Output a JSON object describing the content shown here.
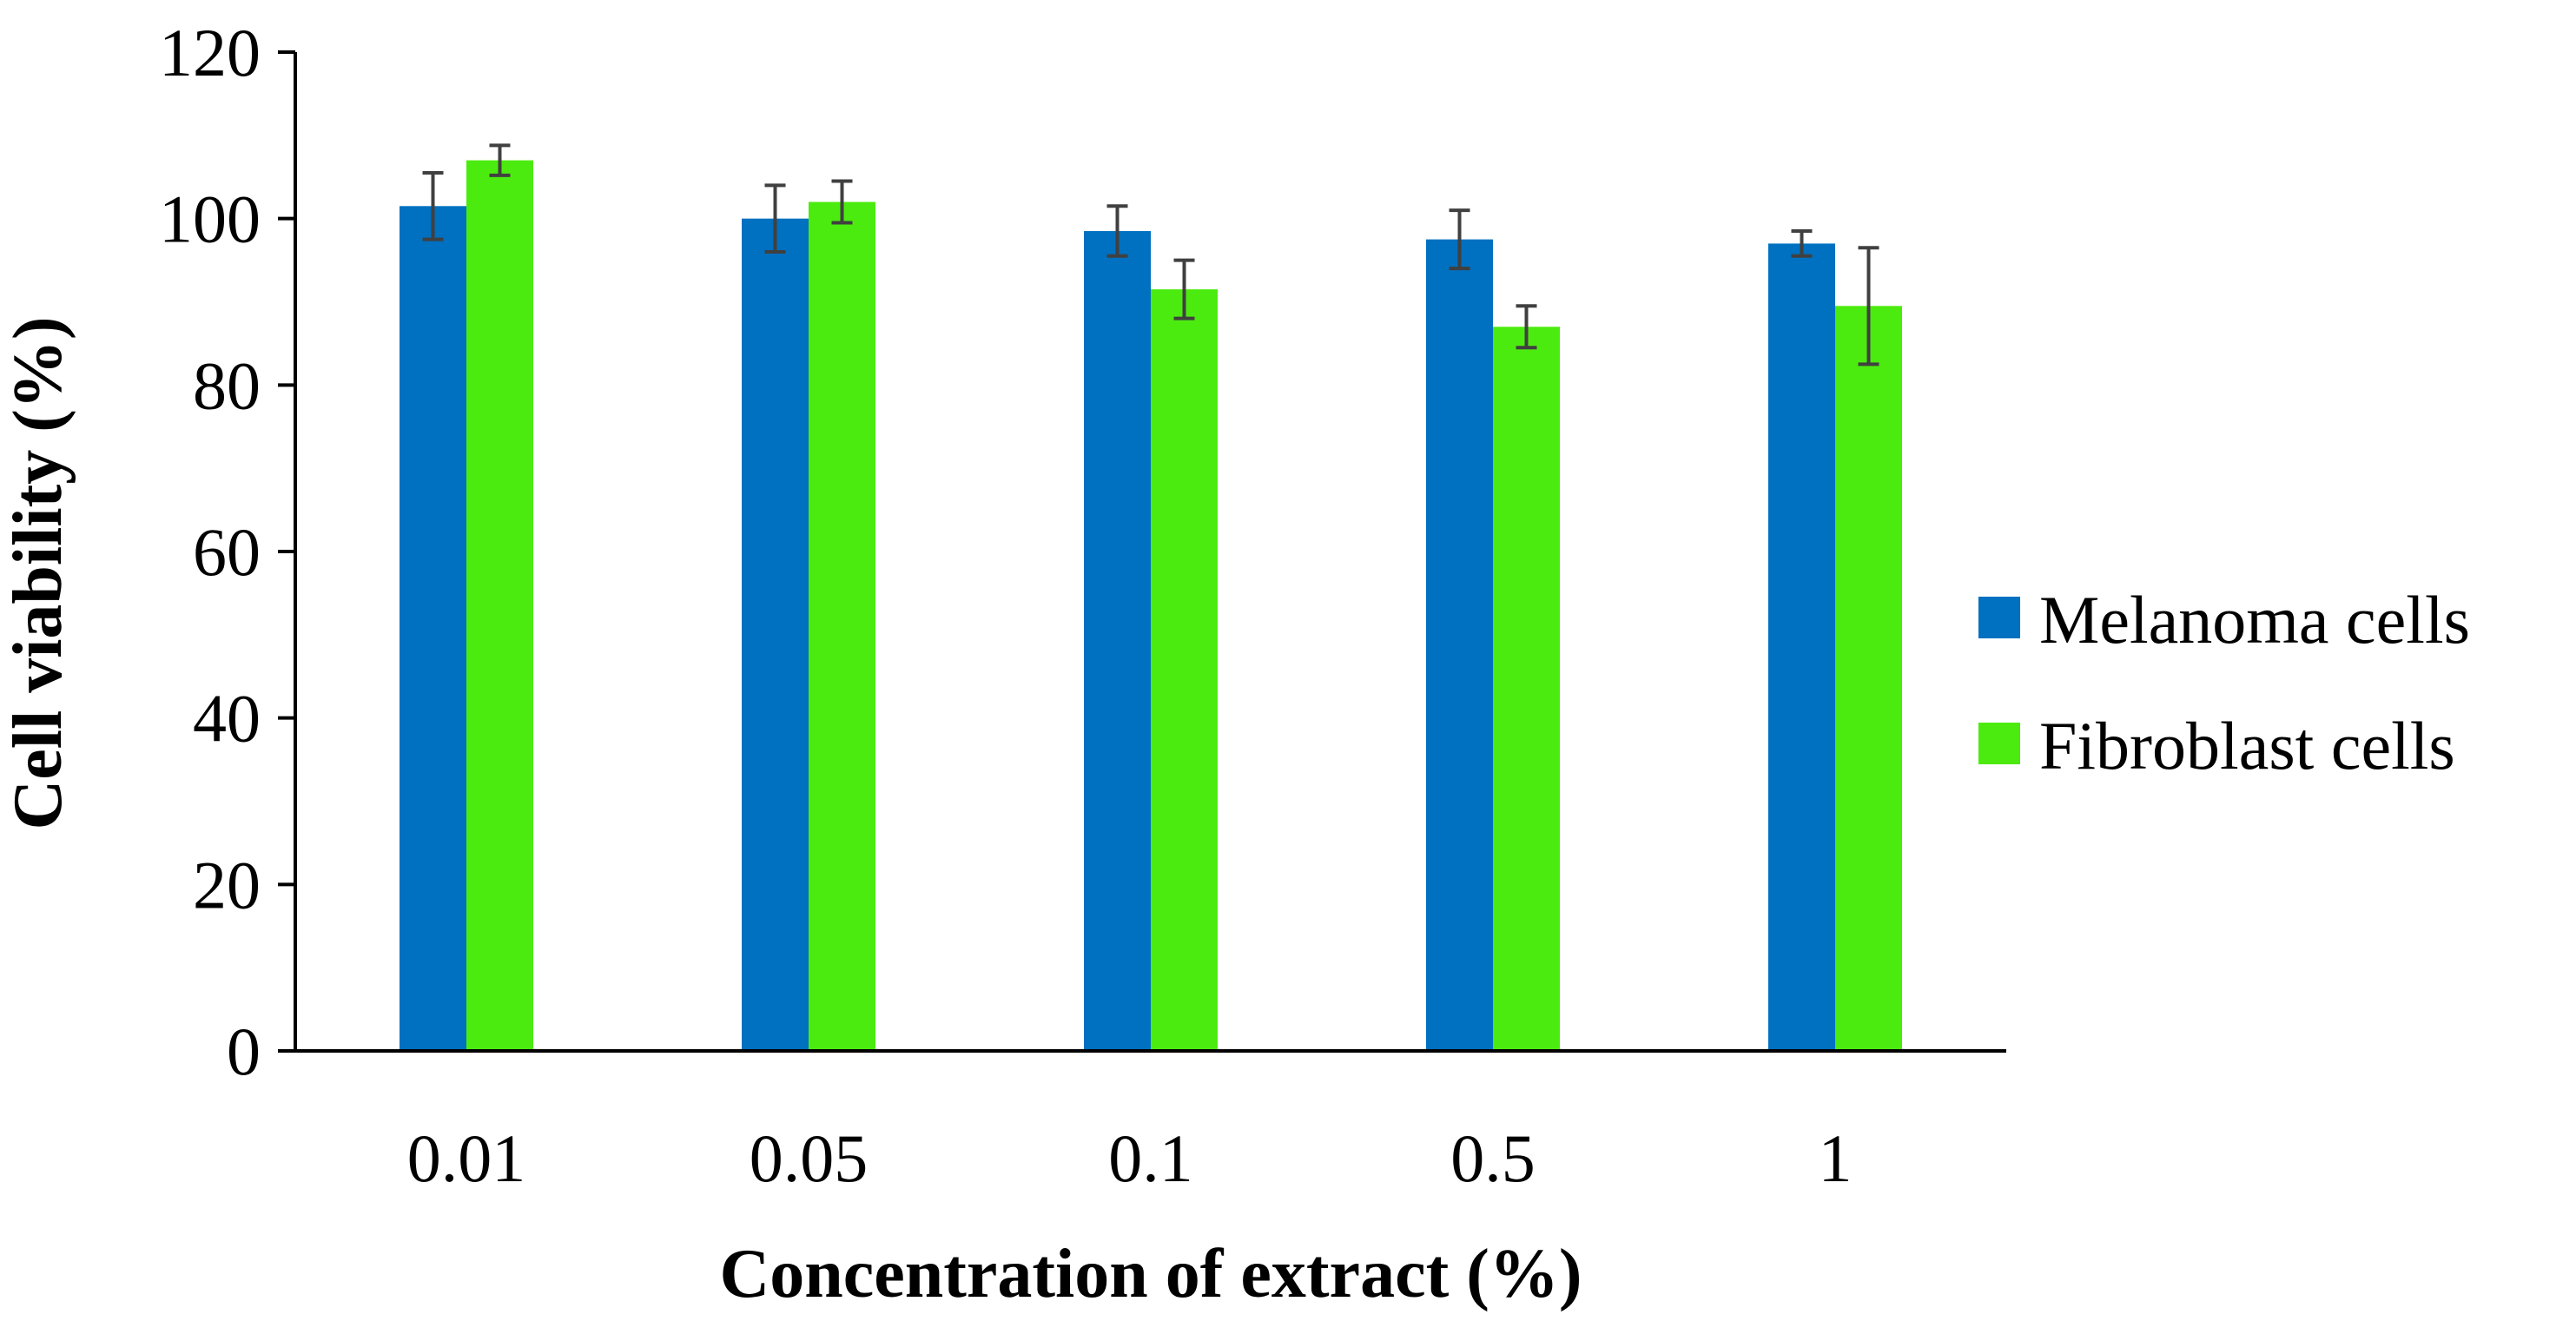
{
  "chart_data": {
    "type": "bar",
    "title": "",
    "xlabel": "Concentration of extract (%)",
    "ylabel": "Cell viability (%)",
    "ylim": [
      0,
      120
    ],
    "yticks": [
      0,
      20,
      40,
      60,
      80,
      100,
      120
    ],
    "grid": false,
    "legend_position": "right",
    "categories": [
      "0.01",
      "0.05",
      "0.1",
      "0.5",
      "1"
    ],
    "series": [
      {
        "name": "Melanoma cells",
        "color": "#0070C0",
        "values": [
          101.5,
          100,
          98.5,
          97.5,
          97
        ],
        "errors": [
          4,
          4,
          3,
          3.5,
          1.5
        ]
      },
      {
        "name": "Fibroblast cells",
        "color": "#4CEB0F",
        "values": [
          107,
          102,
          91.5,
          87,
          89.5
        ],
        "errors": [
          1.8,
          2.5,
          3.5,
          2.5,
          7
        ]
      }
    ]
  }
}
